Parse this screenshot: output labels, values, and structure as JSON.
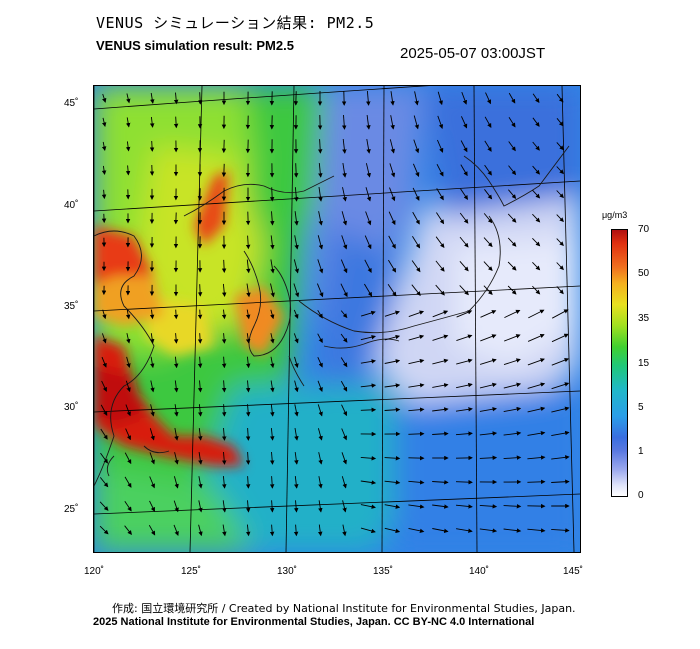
{
  "title_jp": "VENUS シミュレーション結果: PM2.5",
  "title_en": "VENUS simulation result: PM2.5",
  "timestamp": "2025-05-07 03:00JST",
  "lat_labels": [
    "45˚",
    "40˚",
    "35˚",
    "30˚",
    "25˚"
  ],
  "lon_labels": [
    "120˚",
    "125˚",
    "130˚",
    "135˚",
    "140˚",
    "145˚"
  ],
  "colorbar": {
    "unit": "μg/m3",
    "ticks": [
      "70",
      "50",
      "35",
      "15",
      "5",
      "1",
      "0"
    ]
  },
  "credit_line1": "作成: 国立環境研究所 / Created by National Institute for Environmental Studies, Japan.",
  "credit_line2": "2025 National Institute for Environmental Studies, Japan. CC BY-NC 4.0 International"
}
